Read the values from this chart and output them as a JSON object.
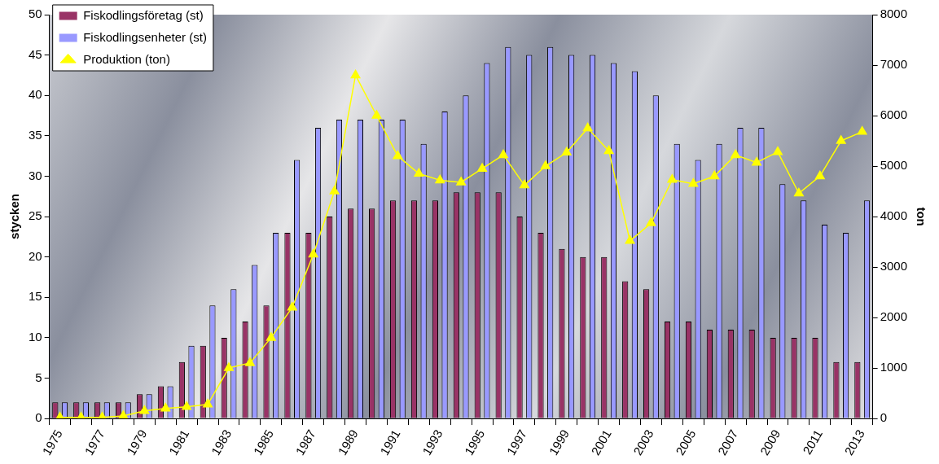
{
  "chart_data": {
    "type": "bar",
    "categories": [
      "1975",
      null,
      "1977",
      null,
      "1979",
      null,
      "1981",
      null,
      "1983",
      null,
      "1985",
      null,
      "1987",
      null,
      "1989",
      null,
      "1991",
      null,
      "1993",
      null,
      "1995",
      null,
      "1997",
      null,
      "1999",
      null,
      "2001",
      null,
      "2003",
      null,
      "2005",
      null,
      "2007",
      null,
      "2009",
      null,
      "2011",
      null,
      "2013"
    ],
    "series": [
      {
        "name": "Fiskodlingsföretag (st)",
        "color": "#993366",
        "values": [
          2,
          2,
          2,
          2,
          3,
          4,
          7,
          9,
          10,
          12,
          14,
          23,
          23,
          25,
          26,
          26,
          27,
          27,
          27,
          28,
          28,
          28,
          25,
          23,
          21,
          20,
          20,
          17,
          16,
          12,
          12,
          11,
          11,
          11,
          10,
          10,
          10,
          7,
          7
        ]
      },
      {
        "name": "Fiskodlingsenheter (st)",
        "color": "#9999ff",
        "values": [
          2,
          2,
          2,
          2,
          3,
          4,
          9,
          14,
          16,
          19,
          23,
          32,
          36,
          37,
          37,
          37,
          37,
          34,
          38,
          40,
          44,
          46,
          45,
          46,
          45,
          45,
          44,
          43,
          40,
          34,
          32,
          34,
          36,
          36,
          29,
          27,
          24,
          23,
          27
        ]
      },
      {
        "name": "Produktion (ton)",
        "type": "line",
        "axis": "y2",
        "color": "#ffff00",
        "values": [
          20,
          20,
          20,
          50,
          150,
          200,
          230,
          280,
          1000,
          1100,
          1600,
          2200,
          3250,
          4500,
          6800,
          6000,
          5200,
          4850,
          4720,
          4680,
          4950,
          5220,
          4620,
          5000,
          5270,
          5750,
          5300,
          3520,
          3870,
          4730,
          4650,
          4800,
          5220,
          5070,
          5280,
          4460,
          4800,
          5500,
          5680
        ]
      }
    ],
    "ylabel": "stycken",
    "y2label": "ton",
    "ylim": [
      0,
      50
    ],
    "yticks": [
      0,
      5,
      10,
      15,
      20,
      25,
      30,
      35,
      40,
      45,
      50
    ],
    "y2lim": [
      0,
      8000
    ],
    "y2ticks": [
      0,
      1000,
      2000,
      3000,
      4000,
      5000,
      6000,
      7000,
      8000
    ],
    "grid": false,
    "legend": "top left",
    "marker": "triangle"
  }
}
